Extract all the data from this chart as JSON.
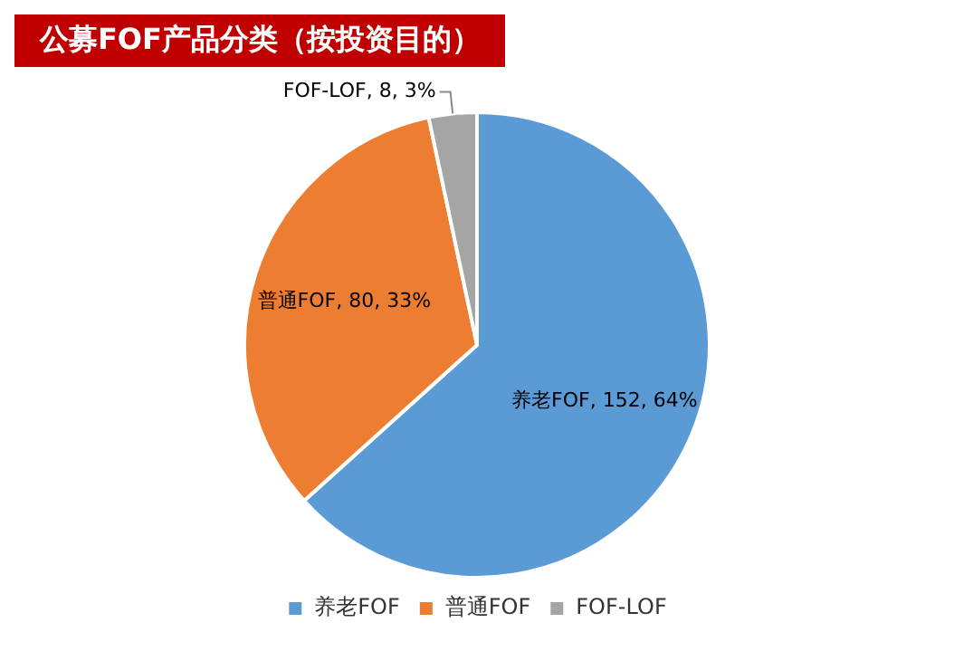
{
  "chart_data": {
    "type": "pie",
    "title": "公募FOF产品分类（按投资目的）",
    "categories": [
      "养老FOF",
      "普通FOF",
      "FOF-LOF"
    ],
    "values": [
      152,
      80,
      8
    ],
    "colors": [
      "#5b9bd5",
      "#ed7d31",
      "#a5a5a5"
    ],
    "value_labels": [
      "养老FOF, 152, 64%",
      "普通FOF, 80, 33%",
      "FOF-LOF, 8, 3%"
    ],
    "legend": "bottom"
  }
}
